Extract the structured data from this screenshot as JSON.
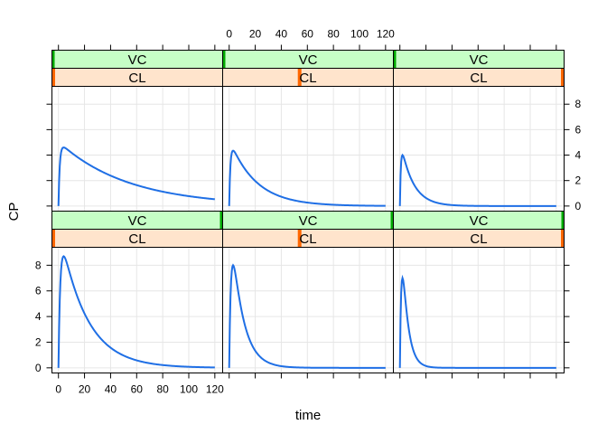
{
  "chart_data": {
    "type": "line",
    "layout": "lattice 3 columns x 2 rows",
    "xlabel": "time",
    "ylabel": "CP",
    "xlim": [
      -5,
      126
    ],
    "ylim": [
      -0.4,
      9.4
    ],
    "xticks": [
      0,
      20,
      40,
      60,
      80,
      100,
      120
    ],
    "yticks": [
      0,
      2,
      4,
      6,
      8
    ],
    "grid": true,
    "colors": {
      "line": "#1f6fe5",
      "strip_vc_fill": "#c6ffc6",
      "strip_cl_fill": "#ffe4cc",
      "strip_vc_marker": "#00aa00",
      "strip_cl_marker": "#ff6600",
      "grid": "#e6e6e6"
    },
    "strip_labels": {
      "top": "VC",
      "bottom": "CL"
    },
    "panels": [
      {
        "row": "top",
        "col": 1,
        "strip_vc_level": 0.0,
        "strip_cl_level": 0.0,
        "peak": 4.6,
        "tpeak": 4,
        "terminal_halflife": 37,
        "x": [
          0,
          2,
          4,
          10,
          20,
          40,
          60,
          80,
          100,
          120
        ],
        "values": [
          0.0,
          4.2,
          4.6,
          4.15,
          3.6,
          2.25,
          1.5,
          1.0,
          0.65,
          0.4
        ]
      },
      {
        "row": "top",
        "col": 2,
        "strip_vc_level": 0.0,
        "strip_cl_level": 0.45,
        "peak": 4.35,
        "tpeak": 3,
        "terminal_halflife": 14,
        "x": [
          0,
          1,
          3,
          10,
          20,
          40,
          60,
          80,
          100,
          120
        ],
        "values": [
          0.0,
          3.0,
          4.35,
          3.2,
          2.0,
          0.75,
          0.3,
          0.12,
          0.05,
          0.02
        ]
      },
      {
        "row": "top",
        "col": 3,
        "strip_vc_level": 0.0,
        "strip_cl_level": 1.0,
        "peak": 4.0,
        "tpeak": 2,
        "terminal_halflife": 6.5,
        "x": [
          0,
          1,
          2,
          10,
          20,
          40,
          60,
          80,
          100,
          120
        ],
        "values": [
          0.0,
          3.4,
          4.0,
          1.8,
          0.6,
          0.08,
          0.01,
          0.0,
          0.0,
          0.0
        ]
      },
      {
        "row": "bottom",
        "col": 1,
        "strip_vc_level": 1.0,
        "strip_cl_level": 0.0,
        "peak": 8.7,
        "tpeak": 4,
        "terminal_halflife": 14,
        "x": [
          0,
          2,
          4,
          10,
          20,
          40,
          60,
          80,
          100,
          120
        ],
        "values": [
          0.0,
          7.8,
          8.7,
          7.2,
          4.8,
          1.8,
          0.7,
          0.25,
          0.1,
          0.04
        ]
      },
      {
        "row": "bottom",
        "col": 2,
        "strip_vc_level": 1.0,
        "strip_cl_level": 0.45,
        "peak": 8.0,
        "tpeak": 3,
        "terminal_halflife": 6,
        "x": [
          0,
          1,
          3,
          10,
          20,
          40,
          60,
          80,
          100,
          120
        ],
        "values": [
          0.0,
          6.5,
          8.0,
          4.4,
          1.6,
          0.15,
          0.02,
          0.0,
          0.0,
          0.0
        ]
      },
      {
        "row": "bottom",
        "col": 3,
        "strip_vc_level": 1.0,
        "strip_cl_level": 1.0,
        "peak": 7.0,
        "tpeak": 2,
        "terminal_halflife": 3,
        "x": [
          0,
          1,
          2,
          10,
          20,
          40,
          60,
          80,
          100,
          120
        ],
        "values": [
          0.0,
          6.0,
          7.0,
          1.5,
          0.15,
          0.0,
          0.0,
          0.0,
          0.0,
          0.0
        ]
      }
    ]
  }
}
